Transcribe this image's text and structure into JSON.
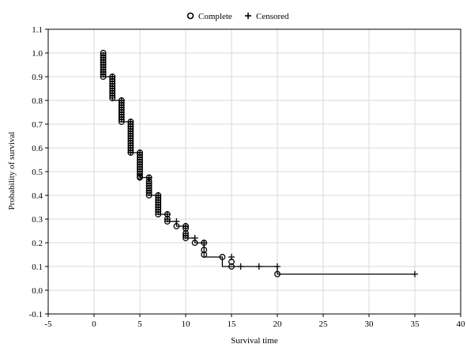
{
  "chart_data": {
    "type": "line",
    "title": "",
    "xlabel": "Survival time",
    "ylabel": "Probability of survival",
    "xlim": [
      -5,
      40
    ],
    "ylim": [
      -0.1,
      1.1
    ],
    "x_ticks": [
      -5,
      0,
      5,
      10,
      15,
      20,
      25,
      30,
      35,
      40
    ],
    "y_ticks": [
      -0.1,
      0.0,
      0.1,
      0.2,
      0.3,
      0.4,
      0.5,
      0.6,
      0.7,
      0.8,
      0.9,
      1.0,
      1.1
    ],
    "x_tick_labels": [
      "-5",
      "0",
      "5",
      "10",
      "15",
      "20",
      "25",
      "30",
      "35",
      "40"
    ],
    "y_tick_labels": [
      "-0.1",
      "0.0",
      "0.1",
      "0.2",
      "0.3",
      "0.4",
      "0.5",
      "0.6",
      "0.7",
      "0.8",
      "0.9",
      "1.0",
      "1.1"
    ],
    "grid": true,
    "legend": {
      "position": "top-center",
      "entries": [
        {
          "marker": "circle",
          "label": "Complete"
        },
        {
          "marker": "plus",
          "label": "Censored"
        }
      ]
    },
    "series": [
      {
        "style": "step",
        "x": [
          1,
          1,
          2,
          2,
          3,
          3,
          4,
          4,
          5,
          5,
          6,
          6,
          7,
          7,
          8,
          8,
          9,
          9,
          10,
          10,
          11,
          11,
          12,
          12,
          14,
          14,
          15,
          15,
          20,
          20,
          35
        ],
        "y": [
          1.0,
          0.9,
          0.9,
          0.8,
          0.8,
          0.71,
          0.71,
          0.58,
          0.58,
          0.475,
          0.475,
          0.4,
          0.4,
          0.32,
          0.32,
          0.29,
          0.29,
          0.27,
          0.27,
          0.22,
          0.22,
          0.2,
          0.2,
          0.14,
          0.14,
          0.1,
          0.1,
          0.1,
          0.1,
          0.068,
          0.068
        ]
      }
    ],
    "complete_points": {
      "x": [
        1,
        1,
        1,
        1,
        1,
        1,
        1,
        1,
        1,
        1,
        1,
        2,
        2,
        2,
        2,
        2,
        2,
        2,
        2,
        2,
        2,
        3,
        3,
        3,
        3,
        3,
        3,
        3,
        3,
        3,
        3,
        4,
        4,
        4,
        4,
        4,
        4,
        4,
        4,
        4,
        4,
        4,
        4,
        4,
        4,
        5,
        5,
        5,
        5,
        5,
        5,
        5,
        5,
        5,
        5,
        5,
        5,
        6,
        6,
        6,
        6,
        6,
        6,
        6,
        6,
        7,
        7,
        7,
        7,
        7,
        7,
        7,
        7,
        7,
        8,
        8,
        8,
        9,
        10,
        10,
        10,
        10,
        10,
        11,
        12,
        12,
        12,
        14,
        15,
        15,
        20
      ],
      "y": [
        1.0,
        0.99,
        0.98,
        0.97,
        0.96,
        0.95,
        0.94,
        0.93,
        0.92,
        0.91,
        0.9,
        0.9,
        0.89,
        0.88,
        0.87,
        0.86,
        0.85,
        0.84,
        0.83,
        0.82,
        0.81,
        0.8,
        0.79,
        0.78,
        0.77,
        0.76,
        0.75,
        0.74,
        0.73,
        0.72,
        0.71,
        0.71,
        0.7,
        0.69,
        0.68,
        0.67,
        0.66,
        0.65,
        0.64,
        0.63,
        0.62,
        0.61,
        0.6,
        0.59,
        0.58,
        0.58,
        0.57,
        0.56,
        0.55,
        0.54,
        0.53,
        0.52,
        0.51,
        0.5,
        0.49,
        0.48,
        0.475,
        0.475,
        0.46,
        0.45,
        0.44,
        0.43,
        0.42,
        0.41,
        0.4,
        0.4,
        0.39,
        0.38,
        0.37,
        0.36,
        0.35,
        0.34,
        0.33,
        0.32,
        0.32,
        0.3,
        0.29,
        0.27,
        0.27,
        0.26,
        0.24,
        0.23,
        0.22,
        0.2,
        0.2,
        0.17,
        0.15,
        0.14,
        0.12,
        0.1,
        0.068
      ]
    },
    "censored_points": {
      "x": [
        2,
        3,
        4,
        4,
        5,
        6,
        7,
        8,
        9,
        10,
        11,
        12,
        15,
        16,
        18,
        20,
        35
      ],
      "y": [
        0.9,
        0.8,
        0.71,
        0.58,
        0.58,
        0.475,
        0.4,
        0.32,
        0.29,
        0.27,
        0.22,
        0.2,
        0.14,
        0.1,
        0.1,
        0.1,
        0.068
      ]
    }
  }
}
